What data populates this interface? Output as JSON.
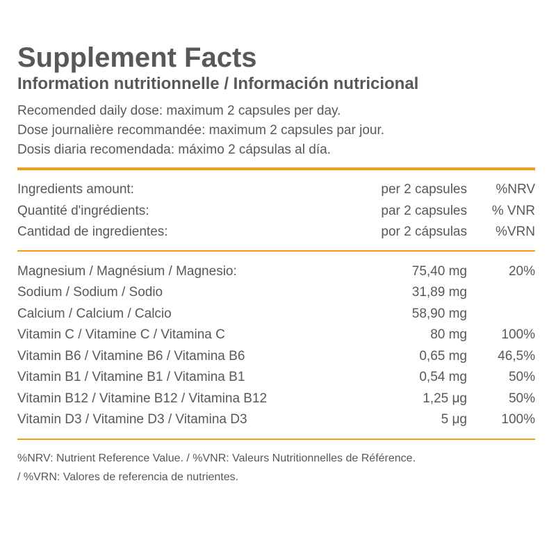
{
  "title": "Supplement Facts",
  "subtitle": "Information nutritionnelle / Información nutricional",
  "dose_lines": [
    "Recomended daily dose: maximum 2 capsules per day.",
    "Dose journalière recommandée: maximum 2 capsules par jour.",
    "Dosis diaria recomendada: máximo 2 cápsulas al día."
  ],
  "header_rows": [
    {
      "name": "Ingredients amount:",
      "amount": "per 2 capsules",
      "pct": "%NRV"
    },
    {
      "name": "Quantité d'ingrédients:",
      "amount": "par 2 capsules",
      "pct": "% VNR"
    },
    {
      "name": "Cantidad de ingredientes:",
      "amount": "por 2 cápsulas",
      "pct": "%VRN"
    }
  ],
  "nutrients": [
    {
      "name": "Magnesium / Magnésium / Magnesio:",
      "amount": "75,40 mg",
      "pct": "20%"
    },
    {
      "name": "Sodium / Sodium / Sodio",
      "amount": "31,89 mg",
      "pct": ""
    },
    {
      "name": "Calcium / Calcium / Calcio",
      "amount": "58,90 mg",
      "pct": ""
    },
    {
      "name": "Vitamin C / Vitamine C / Vitamina C",
      "amount": "80 mg",
      "pct": "100%"
    },
    {
      "name": "Vitamin B6 / Vitamine B6 / Vitamina B6",
      "amount": "0,65 mg",
      "pct": "46,5%"
    },
    {
      "name": "Vitamin B1 / Vitamine B1 / Vitamina B1",
      "amount": "0,54 mg",
      "pct": "50%"
    },
    {
      "name": "Vitamin B12 / Vitamine B12 / Vitamina B12",
      "amount": "1,25 μg",
      "pct": "50%"
    },
    {
      "name": "Vitamin D3 / Vitamine D3 / Vitamina D3",
      "amount": "5 μg",
      "pct": "100%"
    }
  ],
  "footnote_lines": [
    "%NRV: Nutrient Reference Value. / %VNR: Valeurs Nutritionnelles de Référence.",
    "/ %VRN: Valores de referencia de nutrientes."
  ],
  "colors": {
    "text": "#58585a",
    "accent_rule": "#f59c16",
    "background": "#ffffff"
  }
}
